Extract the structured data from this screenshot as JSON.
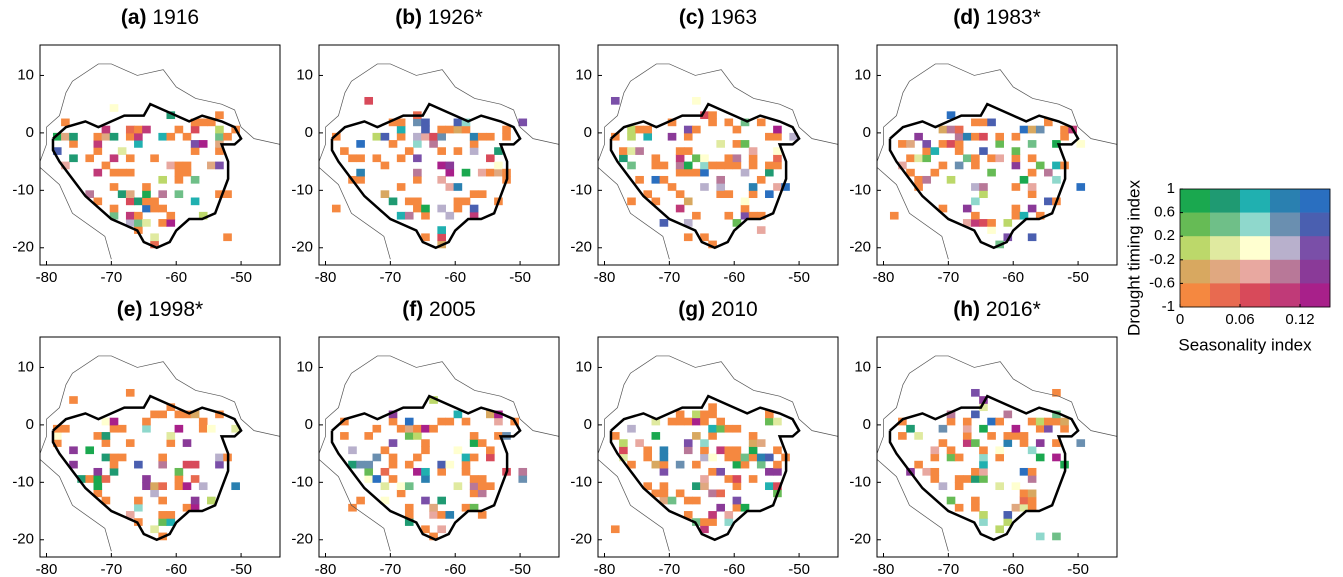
{
  "chart_data": [
    {
      "type": "map",
      "panel": "(a)",
      "title": "1916",
      "xlim": [
        -81,
        -44
      ],
      "ylim": [
        -23,
        15.3
      ],
      "xticks": [
        -80,
        -70,
        -60,
        -50
      ],
      "yticks": [
        10,
        0,
        -10,
        -20
      ]
    },
    {
      "type": "map",
      "panel": "(b)",
      "title": "1926*",
      "xlim": [
        -81,
        -44
      ],
      "ylim": [
        -23,
        15.3
      ],
      "xticks": [
        -80,
        -70,
        -60,
        -50
      ],
      "yticks": [
        10,
        0,
        -10,
        -20
      ]
    },
    {
      "type": "map",
      "panel": "(c)",
      "title": "1963",
      "xlim": [
        -81,
        -44
      ],
      "ylim": [
        -23,
        15.3
      ],
      "xticks": [
        -80,
        -70,
        -60,
        -50
      ],
      "yticks": [
        10,
        0,
        -10,
        -20
      ]
    },
    {
      "type": "map",
      "panel": "(d)",
      "title": "1983*",
      "xlim": [
        -81,
        -44
      ],
      "ylim": [
        -23,
        15.3
      ],
      "xticks": [
        -80,
        -70,
        -60,
        -50
      ],
      "yticks": [
        10,
        0,
        -10,
        -20
      ]
    },
    {
      "type": "map",
      "panel": "(e)",
      "title": "1998*",
      "xlim": [
        -81,
        -44
      ],
      "ylim": [
        -23,
        15.3
      ],
      "xticks": [
        -80,
        -70,
        -60,
        -50
      ],
      "yticks": [
        10,
        0,
        -10,
        -20
      ]
    },
    {
      "type": "map",
      "panel": "(f)",
      "title": "2005",
      "xlim": [
        -81,
        -44
      ],
      "ylim": [
        -23,
        15.3
      ],
      "xticks": [
        -80,
        -70,
        -60,
        -50
      ],
      "yticks": [
        10,
        0,
        -10,
        -20
      ]
    },
    {
      "type": "map",
      "panel": "(g)",
      "title": "2010",
      "xlim": [
        -81,
        -44
      ],
      "ylim": [
        -23,
        15.3
      ],
      "xticks": [
        -80,
        -70,
        -60,
        -50
      ],
      "yticks": [
        10,
        0,
        -10,
        -20
      ]
    },
    {
      "type": "map",
      "panel": "(h)",
      "title": "2016*",
      "xlim": [
        -81,
        -44
      ],
      "ylim": [
        -23,
        15.3
      ],
      "xticks": [
        -80,
        -70,
        -60,
        -50
      ],
      "yticks": [
        10,
        0,
        -10,
        -20
      ]
    },
    {
      "type": "legend-grid",
      "ylabel": "Drought timing index",
      "xlabel": "Seasonality index",
      "xlim": [
        0,
        0.15
      ],
      "ylim": [
        -1,
        1
      ],
      "xticks": [
        0,
        0.06,
        0.12
      ],
      "yticks": [
        1,
        0.6,
        0.2,
        -0.2,
        -0.6,
        -1
      ],
      "colors": [
        [
          "#1aa84f",
          "#1f9a72",
          "#20b0b0",
          "#2a80b0",
          "#2a6fc0"
        ],
        [
          "#66bb55",
          "#6fbf88",
          "#8fd8cc",
          "#6a8fb0",
          "#4a5fb0"
        ],
        [
          "#bcd86a",
          "#e0eaa0",
          "#ffffd0",
          "#b8b0cc",
          "#7a4fa8"
        ],
        [
          "#d8a860",
          "#e0a880",
          "#e8a8a0",
          "#b87898",
          "#8a3a98"
        ],
        [
          "#f58840",
          "#e86a50",
          "#d84a5a",
          "#c03a78",
          "#a8208a"
        ]
      ]
    }
  ]
}
